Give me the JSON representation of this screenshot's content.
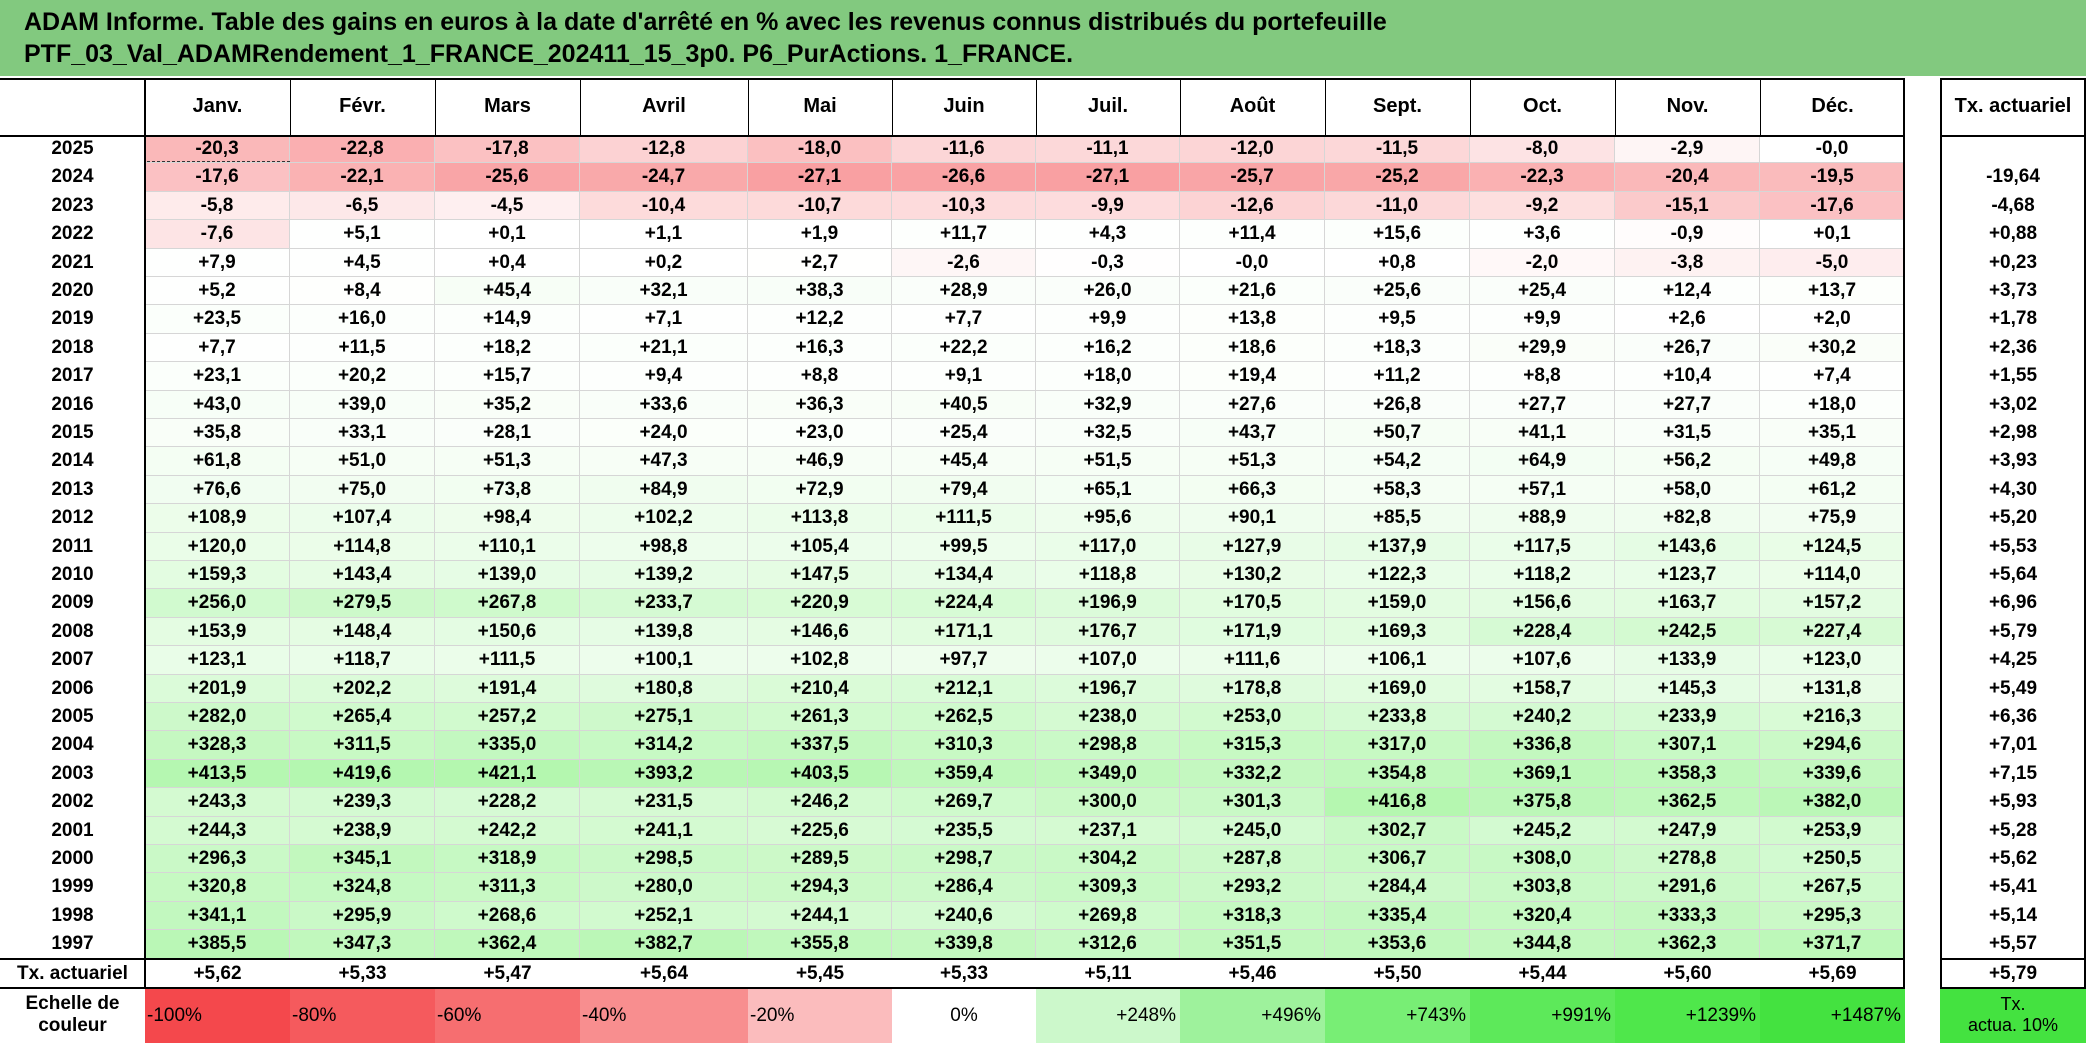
{
  "title": {
    "line1": "ADAM Informe. Table des gains en euros à la date d'arrêté en % avec les revenus connus distribués du portefeuille",
    "line2": "PTF_03_Val_ADAMRendement_1_FRANCE_202411_15_3p0. P6_PurActions. 1_FRANCE."
  },
  "months": [
    "Janv.",
    "Févr.",
    "Mars",
    "Avril",
    "Mai",
    "Juin",
    "Juil.",
    "Août",
    "Sept.",
    "Oct.",
    "Nov.",
    "Déc."
  ],
  "annual_header": "Tx. actuariel",
  "rows": [
    {
      "year": "2025",
      "values": [
        "-20,3",
        "-22,8",
        "-17,8",
        "-12,8",
        "-18,0",
        "-11,6",
        "-11,1",
        "-12,0",
        "-11,5",
        "-8,0",
        "-2,9",
        "-0,0"
      ],
      "rate": ""
    },
    {
      "year": "2024",
      "values": [
        "-17,6",
        "-22,1",
        "-25,6",
        "-24,7",
        "-27,1",
        "-26,6",
        "-27,1",
        "-25,7",
        "-25,2",
        "-22,3",
        "-20,4",
        "-19,5"
      ],
      "rate": "-19,64"
    },
    {
      "year": "2023",
      "values": [
        "-5,8",
        "-6,5",
        "-4,5",
        "-10,4",
        "-10,7",
        "-10,3",
        "-9,9",
        "-12,6",
        "-11,0",
        "-9,2",
        "-15,1",
        "-17,6"
      ],
      "rate": "-4,68"
    },
    {
      "year": "2022",
      "values": [
        "-7,6",
        "+5,1",
        "+0,1",
        "+1,1",
        "+1,9",
        "+11,7",
        "+4,3",
        "+11,4",
        "+15,6",
        "+3,6",
        "-0,9",
        "+0,1"
      ],
      "rate": "+0,88"
    },
    {
      "year": "2021",
      "values": [
        "+7,9",
        "+4,5",
        "+0,4",
        "+0,2",
        "+2,7",
        "-2,6",
        "-0,3",
        "-0,0",
        "+0,8",
        "-2,0",
        "-3,8",
        "-5,0"
      ],
      "rate": "+0,23"
    },
    {
      "year": "2020",
      "values": [
        "+5,2",
        "+8,4",
        "+45,4",
        "+32,1",
        "+38,3",
        "+28,9",
        "+26,0",
        "+21,6",
        "+25,6",
        "+25,4",
        "+12,4",
        "+13,7"
      ],
      "rate": "+3,73"
    },
    {
      "year": "2019",
      "values": [
        "+23,5",
        "+16,0",
        "+14,9",
        "+7,1",
        "+12,2",
        "+7,7",
        "+9,9",
        "+13,8",
        "+9,5",
        "+9,9",
        "+2,6",
        "+2,0"
      ],
      "rate": "+1,78"
    },
    {
      "year": "2018",
      "values": [
        "+7,7",
        "+11,5",
        "+18,2",
        "+21,1",
        "+16,3",
        "+22,2",
        "+16,2",
        "+18,6",
        "+18,3",
        "+29,9",
        "+26,7",
        "+30,2"
      ],
      "rate": "+2,36"
    },
    {
      "year": "2017",
      "values": [
        "+23,1",
        "+20,2",
        "+15,7",
        "+9,4",
        "+8,8",
        "+9,1",
        "+18,0",
        "+19,4",
        "+11,2",
        "+8,8",
        "+10,4",
        "+7,4"
      ],
      "rate": "+1,55"
    },
    {
      "year": "2016",
      "values": [
        "+43,0",
        "+39,0",
        "+35,2",
        "+33,6",
        "+36,3",
        "+40,5",
        "+32,9",
        "+27,6",
        "+26,8",
        "+27,7",
        "+27,7",
        "+18,0"
      ],
      "rate": "+3,02"
    },
    {
      "year": "2015",
      "values": [
        "+35,8",
        "+33,1",
        "+28,1",
        "+24,0",
        "+23,0",
        "+25,4",
        "+32,5",
        "+43,7",
        "+50,7",
        "+41,1",
        "+31,5",
        "+35,1"
      ],
      "rate": "+2,98"
    },
    {
      "year": "2014",
      "values": [
        "+61,8",
        "+51,0",
        "+51,3",
        "+47,3",
        "+46,9",
        "+45,4",
        "+51,5",
        "+51,3",
        "+54,2",
        "+64,9",
        "+56,2",
        "+49,8"
      ],
      "rate": "+3,93"
    },
    {
      "year": "2013",
      "values": [
        "+76,6",
        "+75,0",
        "+73,8",
        "+84,9",
        "+72,9",
        "+79,4",
        "+65,1",
        "+66,3",
        "+58,3",
        "+57,1",
        "+58,0",
        "+61,2"
      ],
      "rate": "+4,30"
    },
    {
      "year": "2012",
      "values": [
        "+108,9",
        "+107,4",
        "+98,4",
        "+102,2",
        "+113,8",
        "+111,5",
        "+95,6",
        "+90,1",
        "+85,5",
        "+88,9",
        "+82,8",
        "+75,9"
      ],
      "rate": "+5,20"
    },
    {
      "year": "2011",
      "values": [
        "+120,0",
        "+114,8",
        "+110,1",
        "+98,8",
        "+105,4",
        "+99,5",
        "+117,0",
        "+127,9",
        "+137,9",
        "+117,5",
        "+143,6",
        "+124,5"
      ],
      "rate": "+5,53"
    },
    {
      "year": "2010",
      "values": [
        "+159,3",
        "+143,4",
        "+139,0",
        "+139,2",
        "+147,5",
        "+134,4",
        "+118,8",
        "+130,2",
        "+122,3",
        "+118,2",
        "+123,7",
        "+114,0"
      ],
      "rate": "+5,64"
    },
    {
      "year": "2009",
      "values": [
        "+256,0",
        "+279,5",
        "+267,8",
        "+233,7",
        "+220,9",
        "+224,4",
        "+196,9",
        "+170,5",
        "+159,0",
        "+156,6",
        "+163,7",
        "+157,2"
      ],
      "rate": "+6,96"
    },
    {
      "year": "2008",
      "values": [
        "+153,9",
        "+148,4",
        "+150,6",
        "+139,8",
        "+146,6",
        "+171,1",
        "+176,7",
        "+171,9",
        "+169,3",
        "+228,4",
        "+242,5",
        "+227,4"
      ],
      "rate": "+5,79"
    },
    {
      "year": "2007",
      "values": [
        "+123,1",
        "+118,7",
        "+111,5",
        "+100,1",
        "+102,8",
        "+97,7",
        "+107,0",
        "+111,6",
        "+106,1",
        "+107,6",
        "+133,9",
        "+123,0"
      ],
      "rate": "+4,25"
    },
    {
      "year": "2006",
      "values": [
        "+201,9",
        "+202,2",
        "+191,4",
        "+180,8",
        "+210,4",
        "+212,1",
        "+196,7",
        "+178,8",
        "+169,0",
        "+158,7",
        "+145,3",
        "+131,8"
      ],
      "rate": "+5,49"
    },
    {
      "year": "2005",
      "values": [
        "+282,0",
        "+265,4",
        "+257,2",
        "+275,1",
        "+261,3",
        "+262,5",
        "+238,0",
        "+253,0",
        "+233,8",
        "+240,2",
        "+233,9",
        "+216,3"
      ],
      "rate": "+6,36"
    },
    {
      "year": "2004",
      "values": [
        "+328,3",
        "+311,5",
        "+335,0",
        "+314,2",
        "+337,5",
        "+310,3",
        "+298,8",
        "+315,3",
        "+317,0",
        "+336,8",
        "+307,1",
        "+294,6"
      ],
      "rate": "+7,01"
    },
    {
      "year": "2003",
      "values": [
        "+413,5",
        "+419,6",
        "+421,1",
        "+393,2",
        "+403,5",
        "+359,4",
        "+349,0",
        "+332,2",
        "+354,8",
        "+369,1",
        "+358,3",
        "+339,6"
      ],
      "rate": "+7,15"
    },
    {
      "year": "2002",
      "values": [
        "+243,3",
        "+239,3",
        "+228,2",
        "+231,5",
        "+246,2",
        "+269,7",
        "+300,0",
        "+301,3",
        "+416,8",
        "+375,8",
        "+362,5",
        "+382,0"
      ],
      "rate": "+5,93"
    },
    {
      "year": "2001",
      "values": [
        "+244,3",
        "+238,9",
        "+242,2",
        "+241,1",
        "+225,6",
        "+235,5",
        "+237,1",
        "+245,0",
        "+302,7",
        "+245,2",
        "+247,9",
        "+253,9"
      ],
      "rate": "+5,28"
    },
    {
      "year": "2000",
      "values": [
        "+296,3",
        "+345,1",
        "+318,9",
        "+298,5",
        "+289,5",
        "+298,7",
        "+304,2",
        "+287,8",
        "+306,7",
        "+308,0",
        "+278,8",
        "+250,5"
      ],
      "rate": "+5,62"
    },
    {
      "year": "1999",
      "values": [
        "+320,8",
        "+324,8",
        "+311,3",
        "+280,0",
        "+294,3",
        "+286,4",
        "+309,3",
        "+293,2",
        "+284,4",
        "+303,8",
        "+291,6",
        "+267,5"
      ],
      "rate": "+5,41"
    },
    {
      "year": "1998",
      "values": [
        "+341,1",
        "+295,9",
        "+268,6",
        "+252,1",
        "+244,1",
        "+240,6",
        "+269,8",
        "+318,3",
        "+335,4",
        "+320,4",
        "+333,3",
        "+295,3"
      ],
      "rate": "+5,14"
    },
    {
      "year": "1997",
      "values": [
        "+385,5",
        "+347,3",
        "+362,4",
        "+382,7",
        "+355,8",
        "+339,8",
        "+312,6",
        "+351,5",
        "+353,6",
        "+344,8",
        "+362,3",
        "+371,7"
      ],
      "rate": "+5,57"
    }
  ],
  "summary": {
    "label": "Tx. actuariel",
    "values": [
      "+5,62",
      "+5,33",
      "+5,47",
      "+5,64",
      "+5,45",
      "+5,33",
      "+5,11",
      "+5,46",
      "+5,50",
      "+5,44",
      "+5,60",
      "+5,69"
    ],
    "rate": "+5,79"
  },
  "scale": {
    "label_line1": "Echelle de",
    "label_line2": "couleur",
    "items": [
      {
        "text": "-100%",
        "color": "#f4484c"
      },
      {
        "text": "-80%",
        "color": "#f55a5d"
      },
      {
        "text": "-60%",
        "color": "#f66e70"
      },
      {
        "text": "-40%",
        "color": "#f88e8f"
      },
      {
        "text": "-20%",
        "color": "#fbbcbd"
      },
      {
        "text": "0%",
        "color": "#ffffff"
      },
      {
        "text": "+248%",
        "color": "#ccf8cb"
      },
      {
        "text": "+496%",
        "color": "#9ef29c"
      },
      {
        "text": "+743%",
        "color": "#78ee75"
      },
      {
        "text": "+991%",
        "color": "#5de95a"
      },
      {
        "text": "+1239%",
        "color": "#4fe74b"
      },
      {
        "text": "+1487%",
        "color": "#44e240"
      }
    ],
    "rate_line1": "Tx.",
    "rate_line2": "actua. 10%",
    "rate_color": "#44e240"
  }
}
